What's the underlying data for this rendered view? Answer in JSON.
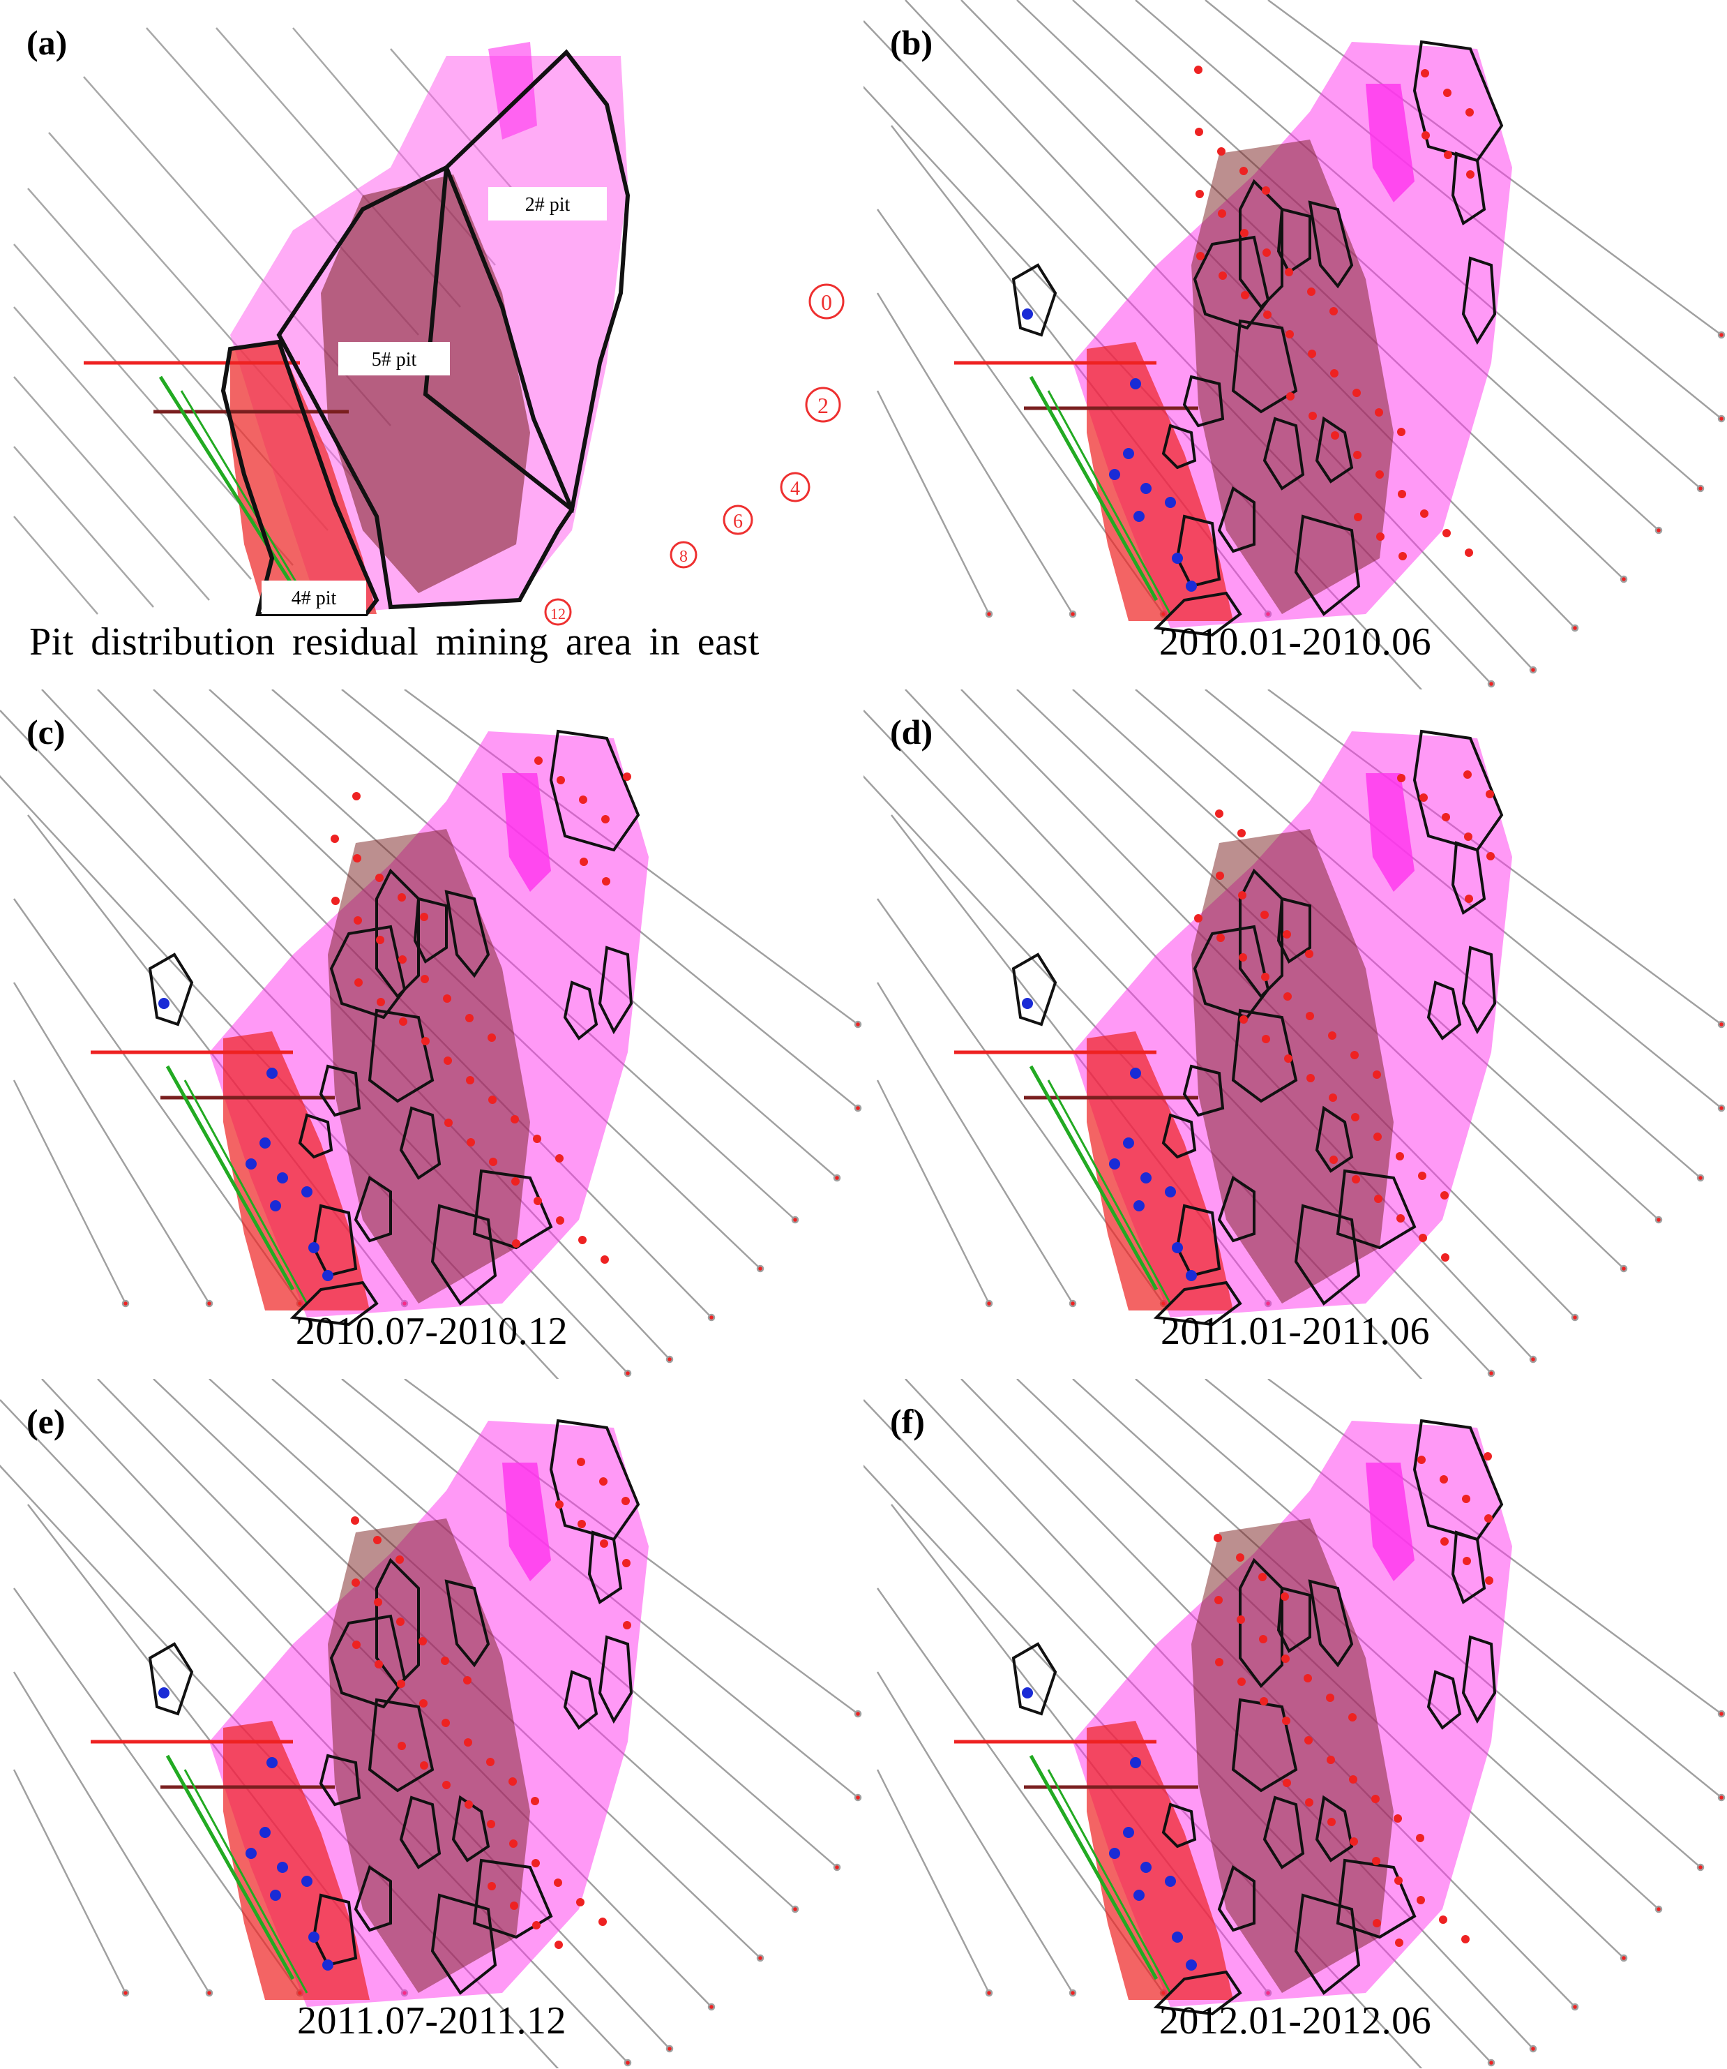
{
  "panels": [
    {
      "label": "(a)",
      "caption": "Pit distribution residual mining area in east"
    },
    {
      "label": "(b)",
      "caption": "2010.01-2010.06"
    },
    {
      "label": "(c)",
      "caption": "2010.07-2010.12"
    },
    {
      "label": "(d)",
      "caption": "2011.01-2011.06"
    },
    {
      "label": "(e)",
      "caption": "2011.07-2011.12"
    },
    {
      "label": "(f)",
      "caption": "2012.01-2012.06"
    }
  ],
  "pit_labels": {
    "pit2": "2# pit",
    "pit5": "5# pit",
    "pit4": "4# pit"
  },
  "line_numbers": [
    "0",
    "2",
    "4",
    "6",
    "8",
    "12"
  ],
  "colors": {
    "magenta": "#ff33ee",
    "dark_red": "#7a1f1f",
    "red": "#ee2222",
    "green": "#22aa22",
    "grey_line": "#a0a0a0",
    "outline": "#111111",
    "blue": "#1a2bd6"
  }
}
